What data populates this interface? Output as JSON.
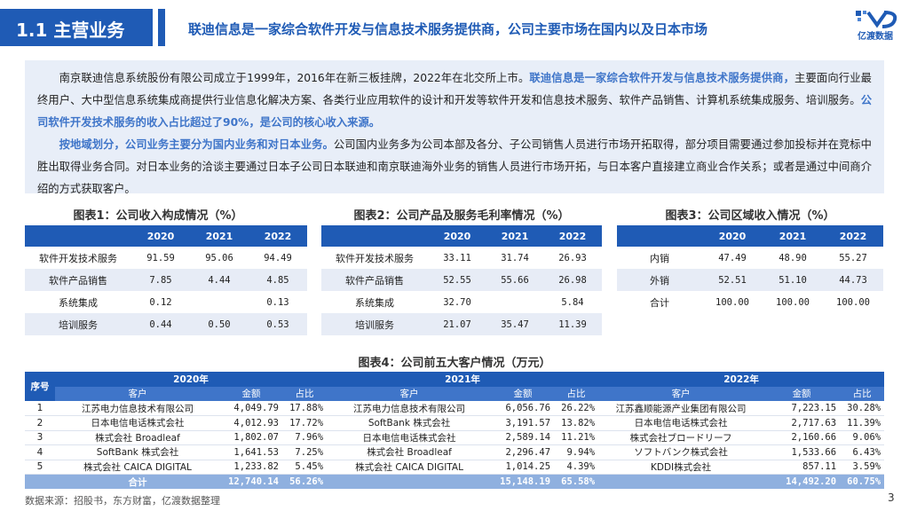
{
  "header": {
    "section": "1.1 主营业务",
    "title": "联迪信息是一家综合软件开发与信息技术服务提供商，公司主要市场在国内以及日本市场",
    "logo_text": "亿渡数据"
  },
  "intro": {
    "p1": [
      {
        "text": "南京联迪信息系统股份有限公司成立于1999年，2016年在新三板挂牌，2022年在北交所上市。",
        "hl": false
      },
      {
        "text": "联迪信息是一家综合软件开发与信息技术服务提供商，",
        "hl": true
      },
      {
        "text": "主要面向行业最终用户、大中型信息系统集成商提供行业信息化解决方案、各类行业应用软件的设计和开发等软件开发和信息技术服务、软件产品销售、计算机系统集成服务、培训服务。",
        "hl": false
      },
      {
        "text": "公司软件开发技术服务的收入占比超过了90%，是公司的核心收入来源。",
        "hl": true
      }
    ],
    "p2": [
      {
        "text": "按地域划分，公司业务主要分为国内业务和对日本业务。",
        "hl": true
      },
      {
        "text": "公司国内业务多为公司本部及各分、子公司销售人员进行市场开拓取得，部分项目需要通过参加投标并在竞标中胜出取得业务合同。对日本业务的洽谈主要通过日本子公司日本联迪和南京联迪海外业务的销售人员进行市场开拓，与日本客户直接建立商业合作关系；或者是通过中间商介绍的方式获取客户。",
        "hl": false
      }
    ]
  },
  "fig1": {
    "title": "图表1：公司收入构成情况（%）",
    "headers": [
      "",
      "2020",
      "2021",
      "2022"
    ],
    "rows": [
      [
        "软件开发技术服务",
        "91.59",
        "95.06",
        "94.49"
      ],
      [
        "软件产品销售",
        "7.85",
        "4.44",
        "4.85"
      ],
      [
        "系统集成",
        "0.12",
        "",
        "0.13"
      ],
      [
        "培训服务",
        "0.44",
        "0.50",
        "0.53"
      ]
    ]
  },
  "fig2": {
    "title": "图表2：公司产品及服务毛利率情况（%）",
    "headers": [
      "",
      "2020",
      "2021",
      "2022"
    ],
    "rows": [
      [
        "软件开发技术服务",
        "33.11",
        "31.74",
        "26.93"
      ],
      [
        "软件产品销售",
        "52.55",
        "55.66",
        "26.98"
      ],
      [
        "系统集成",
        "32.70",
        "",
        "5.84"
      ],
      [
        "培训服务",
        "21.07",
        "35.47",
        "11.39"
      ]
    ]
  },
  "fig3": {
    "title": "图表3：公司区域收入情况（%）",
    "headers": [
      "",
      "2020",
      "2021",
      "2022"
    ],
    "rows": [
      [
        "内销",
        "47.49",
        "48.90",
        "55.27"
      ],
      [
        "外销",
        "52.51",
        "51.10",
        "44.73"
      ],
      [
        "合计",
        "100.00",
        "100.00",
        "100.00"
      ]
    ]
  },
  "fig4": {
    "title": "图表4：公司前五大客户情况（万元）",
    "index_header": "序号",
    "years": [
      "2020年",
      "2021年",
      "2022年"
    ],
    "sub_headers": [
      "客户",
      "金额",
      "占比"
    ],
    "rows": [
      [
        "1",
        "江苏电力信息技术有限公司",
        "4,049.79",
        "17.88%",
        "江苏电力信息技术有限公司",
        "6,056.76",
        "26.22%",
        "江苏鑫顺能源产业集团有限公司",
        "7,223.15",
        "30.28%"
      ],
      [
        "2",
        "日本电信电话株式会社",
        "4,012.93",
        "17.72%",
        "SoftBank 株式会社",
        "3,191.57",
        "13.82%",
        "日本电信电话株式会社",
        "2,717.63",
        "11.39%"
      ],
      [
        "3",
        "株式会社 Broadleaf",
        "1,802.07",
        "7.96%",
        "日本电信电话株式会社",
        "2,589.14",
        "11.21%",
        "株式会社ブロードリーフ",
        "2,160.66",
        "9.06%"
      ],
      [
        "4",
        "SoftBank 株式会社",
        "1,641.53",
        "7.25%",
        "株式会社 Broadleaf",
        "2,296.47",
        "9.94%",
        "ソフトバンク株式会社",
        "1,533.66",
        "6.43%"
      ],
      [
        "5",
        "株式会社 CAICA DIGITAL",
        "1,233.82",
        "5.45%",
        "株式会社 CAICA DIGITAL",
        "1,014.25",
        "4.39%",
        "KDDI株式会社",
        "857.11",
        "3.59%"
      ]
    ],
    "total": [
      "",
      "合计",
      "12,740.14",
      "56.26%",
      "",
      "15,148.19",
      "65.58%",
      "",
      "14,492.20",
      "60.75%"
    ]
  },
  "footer": {
    "source": "数据来源：招股书，东方财富，亿渡数据整理",
    "page": "3"
  }
}
